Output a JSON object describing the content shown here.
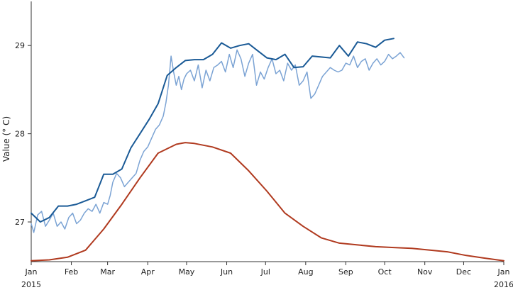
{
  "chart_data": {
    "type": "line",
    "ylabel": "Value (° C)",
    "xlabel": "",
    "ylim": [
      26.55,
      29.5
    ],
    "xlim": [
      "2015-01-01",
      "2016-01-01"
    ],
    "grid": false,
    "legend": "none",
    "x_ticks": [
      {
        "date": "2015-01-01",
        "label": "Jan",
        "sublabel": "2015"
      },
      {
        "date": "2015-02-01",
        "label": "Feb",
        "sublabel": ""
      },
      {
        "date": "2015-03-01",
        "label": "Mar",
        "sublabel": ""
      },
      {
        "date": "2015-04-01",
        "label": "Apr",
        "sublabel": ""
      },
      {
        "date": "2015-05-01",
        "label": "May",
        "sublabel": ""
      },
      {
        "date": "2015-06-01",
        "label": "Jun",
        "sublabel": ""
      },
      {
        "date": "2015-07-01",
        "label": "Jul",
        "sublabel": ""
      },
      {
        "date": "2015-08-01",
        "label": "Aug",
        "sublabel": ""
      },
      {
        "date": "2015-09-01",
        "label": "Sep",
        "sublabel": ""
      },
      {
        "date": "2015-10-01",
        "label": "Oct",
        "sublabel": ""
      },
      {
        "date": "2015-11-01",
        "label": "Nov",
        "sublabel": ""
      },
      {
        "date": "2015-12-01",
        "label": "Dec",
        "sublabel": ""
      },
      {
        "date": "2016-01-01",
        "label": "Jan",
        "sublabel": "2016"
      }
    ],
    "y_ticks": [
      27,
      28,
      29
    ],
    "series": [
      {
        "color": "#7ba3d4",
        "x": [
          "2015-01-01",
          "2015-01-03",
          "2015-01-06",
          "2015-01-09",
          "2015-01-12",
          "2015-01-15",
          "2015-01-18",
          "2015-01-21",
          "2015-01-24",
          "2015-01-27",
          "2015-01-30",
          "2015-02-02",
          "2015-02-05",
          "2015-02-08",
          "2015-02-11",
          "2015-02-14",
          "2015-02-17",
          "2015-02-20",
          "2015-02-23",
          "2015-02-26",
          "2015-03-01",
          "2015-03-03",
          "2015-03-05",
          "2015-03-08",
          "2015-03-11",
          "2015-03-14",
          "2015-03-17",
          "2015-03-20",
          "2015-03-23",
          "2015-03-26",
          "2015-03-29",
          "2015-04-01",
          "2015-04-04",
          "2015-04-07",
          "2015-04-10",
          "2015-04-13",
          "2015-04-15",
          "2015-04-17",
          "2015-04-19",
          "2015-04-21",
          "2015-04-23",
          "2015-04-25",
          "2015-04-27",
          "2015-04-29",
          "2015-05-01",
          "2015-05-04",
          "2015-05-07",
          "2015-05-10",
          "2015-05-13",
          "2015-05-16",
          "2015-05-19",
          "2015-05-22",
          "2015-05-25",
          "2015-05-28",
          "2015-05-31",
          "2015-06-03",
          "2015-06-06",
          "2015-06-09",
          "2015-06-12",
          "2015-06-15",
          "2015-06-18",
          "2015-06-21",
          "2015-06-24",
          "2015-06-27",
          "2015-06-30",
          "2015-07-03",
          "2015-07-06",
          "2015-07-09",
          "2015-07-12",
          "2015-07-15",
          "2015-07-18",
          "2015-07-21",
          "2015-07-24",
          "2015-07-27",
          "2015-07-30",
          "2015-08-02",
          "2015-08-05",
          "2015-08-08",
          "2015-08-11",
          "2015-08-14",
          "2015-08-17",
          "2015-08-20",
          "2015-08-23",
          "2015-08-26",
          "2015-08-29",
          "2015-09-01",
          "2015-09-04",
          "2015-09-07",
          "2015-09-10",
          "2015-09-13",
          "2015-09-16",
          "2015-09-19",
          "2015-09-22",
          "2015-09-25",
          "2015-09-28",
          "2015-10-01",
          "2015-10-04",
          "2015-10-07",
          "2015-10-10",
          "2015-10-13",
          "2015-10-16"
        ],
        "values": [
          26.98,
          26.88,
          27.08,
          27.12,
          26.95,
          27.02,
          27.1,
          26.95,
          27.0,
          26.92,
          27.05,
          27.1,
          26.98,
          27.02,
          27.1,
          27.15,
          27.12,
          27.2,
          27.1,
          27.22,
          27.2,
          27.3,
          27.45,
          27.55,
          27.5,
          27.4,
          27.45,
          27.5,
          27.55,
          27.7,
          27.8,
          27.85,
          27.95,
          28.05,
          28.1,
          28.2,
          28.35,
          28.55,
          28.88,
          28.7,
          28.55,
          28.65,
          28.5,
          28.62,
          28.68,
          28.72,
          28.6,
          28.78,
          28.52,
          28.72,
          28.6,
          28.75,
          28.78,
          28.82,
          28.7,
          28.9,
          28.75,
          28.95,
          28.85,
          28.65,
          28.8,
          28.9,
          28.55,
          28.7,
          28.62,
          28.75,
          28.85,
          28.68,
          28.72,
          28.6,
          28.8,
          28.72,
          28.78,
          28.55,
          28.6,
          28.7,
          28.4,
          28.45,
          28.55,
          28.65,
          28.7,
          28.75,
          28.72,
          28.7,
          28.72,
          28.8,
          28.78,
          28.88,
          28.75,
          28.82,
          28.85,
          28.72,
          28.8,
          28.85,
          28.78,
          28.82,
          28.9,
          28.85,
          28.88,
          28.92,
          28.86
        ]
      },
      {
        "color": "#1a5a96",
        "x": [
          "2015-01-01",
          "2015-01-08",
          "2015-01-15",
          "2015-01-22",
          "2015-01-29",
          "2015-02-05",
          "2015-02-12",
          "2015-02-19",
          "2015-02-26",
          "2015-03-05",
          "2015-03-12",
          "2015-03-19",
          "2015-03-26",
          "2015-04-02",
          "2015-04-09",
          "2015-04-16",
          "2015-04-23",
          "2015-04-30",
          "2015-05-07",
          "2015-05-14",
          "2015-05-21",
          "2015-05-28",
          "2015-06-04",
          "2015-06-11",
          "2015-06-18",
          "2015-06-25",
          "2015-07-02",
          "2015-07-09",
          "2015-07-16",
          "2015-07-23",
          "2015-07-30",
          "2015-08-06",
          "2015-08-13",
          "2015-08-20",
          "2015-08-27",
          "2015-09-03",
          "2015-09-10",
          "2015-09-17",
          "2015-09-24",
          "2015-10-01",
          "2015-10-08"
        ],
        "values": [
          27.1,
          27.0,
          27.05,
          27.18,
          27.18,
          27.2,
          27.24,
          27.28,
          27.54,
          27.54,
          27.6,
          27.84,
          28.0,
          28.16,
          28.34,
          28.66,
          28.75,
          28.83,
          28.84,
          28.84,
          28.9,
          29.03,
          28.97,
          29.0,
          29.02,
          28.94,
          28.86,
          28.84,
          28.9,
          28.75,
          28.76,
          28.88,
          28.87,
          28.86,
          29.0,
          28.88,
          29.04,
          29.02,
          28.98,
          29.06,
          29.08
        ]
      },
      {
        "color": "#b03a1f",
        "x": [
          "2015-01-01",
          "2015-01-15",
          "2015-01-29",
          "2015-02-12",
          "2015-02-26",
          "2015-03-12",
          "2015-03-26",
          "2015-04-09",
          "2015-04-23",
          "2015-04-30",
          "2015-05-07",
          "2015-05-21",
          "2015-06-04",
          "2015-06-18",
          "2015-07-02",
          "2015-07-16",
          "2015-07-30",
          "2015-08-13",
          "2015-08-27",
          "2015-09-10",
          "2015-09-24",
          "2015-10-08",
          "2015-10-22",
          "2015-11-05",
          "2015-11-19",
          "2015-12-03",
          "2015-12-17",
          "2016-01-01"
        ],
        "values": [
          26.56,
          26.57,
          26.6,
          26.68,
          26.92,
          27.2,
          27.5,
          27.78,
          27.88,
          27.9,
          27.89,
          27.85,
          27.78,
          27.58,
          27.35,
          27.1,
          26.95,
          26.82,
          26.76,
          26.74,
          26.72,
          26.71,
          26.7,
          26.68,
          26.66,
          26.62,
          26.59,
          26.56
        ]
      }
    ]
  }
}
